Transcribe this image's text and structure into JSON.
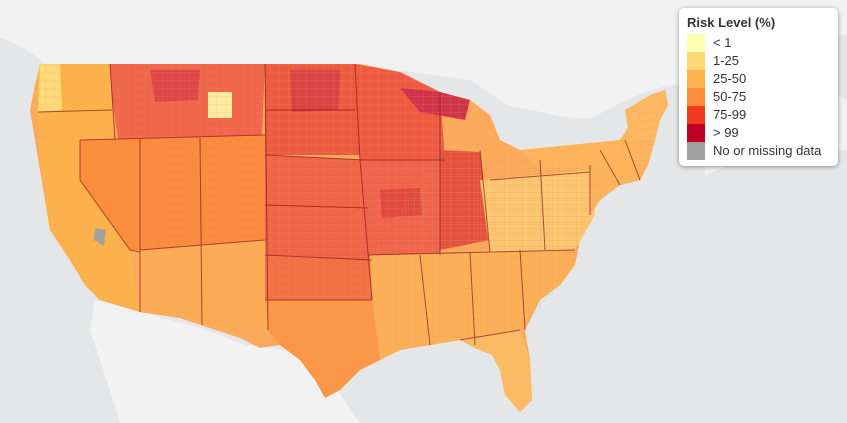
{
  "legend": {
    "title": "Risk Level (%)",
    "items": [
      {
        "label": "< 1",
        "color": "#ffffb2"
      },
      {
        "label": "1-25",
        "color": "#fed976"
      },
      {
        "label": "25-50",
        "color": "#feb24c"
      },
      {
        "label": "50-75",
        "color": "#fd8d3c"
      },
      {
        "label": "75-99",
        "color": "#f03b20"
      },
      {
        "label": "> 99",
        "color": "#bd0026"
      },
      {
        "label": "No or missing data",
        "color": "#a0a0a0"
      }
    ]
  },
  "map": {
    "basemap_land_color": "#f2f2f2",
    "basemap_water_color": "#e4e6e8",
    "state_border_color": "#8b1a1a",
    "region_risk_levels": [
      {
        "region": "washington-coast",
        "level": "1-25"
      },
      {
        "region": "pacific-northwest",
        "level": "25-50"
      },
      {
        "region": "montana-idaho",
        "level": "75-99"
      },
      {
        "region": "dakotas",
        "level": "75-99"
      },
      {
        "region": "minnesota-wisconsin",
        "level": "75-99"
      },
      {
        "region": "upper-michigan",
        "level": "> 99"
      },
      {
        "region": "nebraska-kansas",
        "level": "75-99"
      },
      {
        "region": "iowa-missouri",
        "level": "75-99"
      },
      {
        "region": "illinois-indiana",
        "level": "75-99"
      },
      {
        "region": "california",
        "level": "25-50"
      },
      {
        "region": "nevada",
        "level": "50-75"
      },
      {
        "region": "utah-colorado",
        "level": "50-75"
      },
      {
        "region": "arizona-new-mexico",
        "level": "25-50"
      },
      {
        "region": "texas",
        "level": "50-75"
      },
      {
        "region": "oklahoma",
        "level": "75-99"
      },
      {
        "region": "southeast",
        "level": "25-50"
      },
      {
        "region": "florida",
        "level": "25-50"
      },
      {
        "region": "appalachia",
        "level": "1-25"
      },
      {
        "region": "northeast",
        "level": "25-50"
      },
      {
        "region": "maine",
        "level": "25-50"
      }
    ]
  }
}
